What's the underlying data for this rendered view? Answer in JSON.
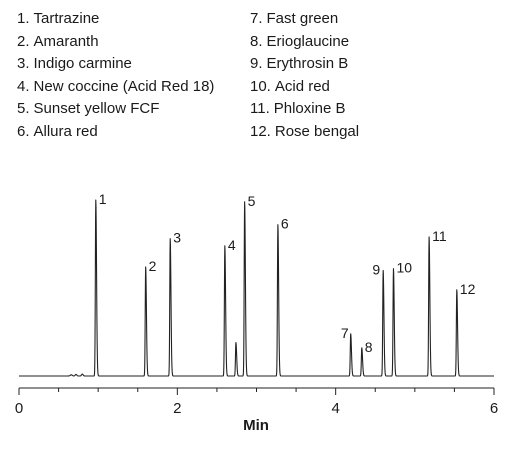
{
  "legend": [
    {
      "num": "1.",
      "name": "Tartrazine"
    },
    {
      "num": "2.",
      "name": "Amaranth"
    },
    {
      "num": "3.",
      "name": "Indigo carmine"
    },
    {
      "num": "4.",
      "name": "New coccine (Acid Red 18)"
    },
    {
      "num": "5.",
      "name": "Sunset yellow FCF"
    },
    {
      "num": "6.",
      "name": "Allura red"
    },
    {
      "num": "7.",
      "name": "Fast green"
    },
    {
      "num": "8.",
      "name": "Erioglaucine"
    },
    {
      "num": "9.",
      "name": "Erythrosin B"
    },
    {
      "num": "10.",
      "name": "Acid red"
    },
    {
      "num": "11.",
      "name": "Phloxine B"
    },
    {
      "num": "12.",
      "name": "Rose bengal"
    }
  ],
  "chart_data": {
    "type": "line",
    "xlabel": "Min",
    "ylabel": "",
    "xlim": [
      0,
      6
    ],
    "ylim": [
      0,
      100
    ],
    "xticks": [
      0,
      2,
      4,
      6
    ],
    "xtick_labels": [
      "0",
      "2",
      "4",
      "6"
    ],
    "grid": false,
    "line_color": "#222222",
    "peaks": [
      {
        "label": "1",
        "x": 0.97,
        "height": 100
      },
      {
        "label": "2",
        "x": 1.6,
        "height": 62
      },
      {
        "label": "3",
        "x": 1.91,
        "height": 78
      },
      {
        "label": "4",
        "x": 2.6,
        "height": 74
      },
      {
        "label": "",
        "x": 2.74,
        "height": 19
      },
      {
        "label": "5",
        "x": 2.85,
        "height": 99
      },
      {
        "label": "6",
        "x": 3.27,
        "height": 86
      },
      {
        "label": "7",
        "x": 4.19,
        "height": 24
      },
      {
        "label": "8",
        "x": 4.33,
        "height": 16
      },
      {
        "label": "9",
        "x": 4.6,
        "height": 60
      },
      {
        "label": "10",
        "x": 4.73,
        "height": 61
      },
      {
        "label": "11",
        "x": 5.18,
        "height": 79
      },
      {
        "label": "12",
        "x": 5.53,
        "height": 49
      }
    ]
  }
}
